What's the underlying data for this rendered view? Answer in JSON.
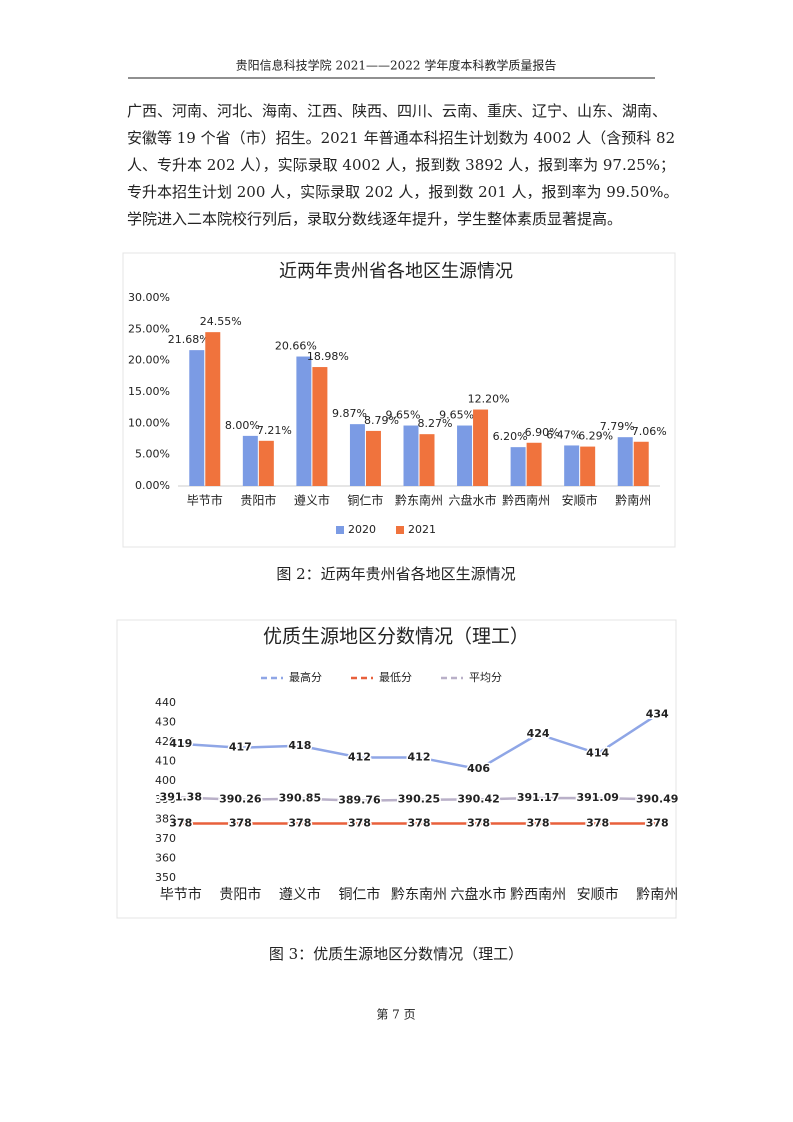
{
  "header": {
    "title": "贵阳信息科技学院 2021——2022 学年度本科教学质量报告"
  },
  "body": {
    "lines": [
      "广西、河南、河北、海南、江西、陕西、四川、云南、重庆、辽宁、山东、湖南、",
      "安徽等 19 个省（市）招生。2021 年普通本科招生计划数为 4002 人（含预科 82",
      "人、专升本 202 人），实际录取 4002 人，报到数 3892 人，报到率为 97.25%；",
      "专升本招生计划 200 人，实际录取 202 人，报到数 201 人，报到率为 99.50%。",
      "学院进入二本院校行列后，录取分数线逐年提升，学生整体素质显著提高。"
    ]
  },
  "chart_data": [
    {
      "type": "bar",
      "title": "近两年贵州省各地区生源情况",
      "categories": [
        "毕节市",
        "贵阳市",
        "遵义市",
        "铜仁市",
        "黔东南州",
        "六盘水市",
        "黔西南州",
        "安顺市",
        "黔南州"
      ],
      "series": [
        {
          "name": "2020",
          "color": "#7b9be4",
          "values": [
            21.68,
            8.0,
            20.66,
            9.87,
            9.65,
            9.65,
            6.2,
            6.47,
            7.79
          ],
          "value_labels": [
            "21.68%",
            "8.00%",
            "20.66%",
            "9.87%",
            "9.65%",
            "9.65%",
            "6.20%",
            "6.47%",
            "7.79%"
          ]
        },
        {
          "name": "2021",
          "color": "#f0733d",
          "values": [
            24.55,
            7.21,
            18.98,
            8.79,
            8.27,
            12.2,
            6.9,
            6.29,
            7.06
          ],
          "value_labels": [
            "24.55%",
            "7.21%",
            "18.98%",
            "8.79%",
            "8.27%",
            "12.20%",
            "6.90%",
            "6.29%",
            "7.06%"
          ]
        }
      ],
      "ylim": [
        0,
        30
      ],
      "yticks": [
        {
          "value": 0,
          "label": "0.00%"
        },
        {
          "value": 5,
          "label": "5.00%"
        },
        {
          "value": 10,
          "label": "10.00%"
        },
        {
          "value": 15,
          "label": "15.00%"
        },
        {
          "value": 20,
          "label": "20.00%"
        },
        {
          "value": 25,
          "label": "25.00%"
        },
        {
          "value": 30,
          "label": "30.00%"
        }
      ],
      "grid": false,
      "legend": "bottom"
    },
    {
      "type": "line",
      "title": "优质生源地区分数情况（理工）",
      "categories": [
        "毕节市",
        "贵阳市",
        "遵义市",
        "铜仁市",
        "黔东南州",
        "六盘水市",
        "黔西南州",
        "安顺市",
        "黔南州"
      ],
      "series": [
        {
          "name": "最高分",
          "color": "#8fa6e6",
          "values": [
            419,
            417,
            418,
            412,
            412,
            406,
            424,
            414,
            434
          ]
        },
        {
          "name": "最低分",
          "color": "#e8603c",
          "values": [
            378,
            378,
            378,
            378,
            378,
            378,
            378,
            378,
            378
          ]
        },
        {
          "name": "平均分",
          "color": "#b9b0c8",
          "values": [
            391.38,
            390.26,
            390.85,
            389.76,
            390.25,
            390.42,
            391.17,
            391.09,
            390.49
          ]
        }
      ],
      "ylim": [
        350,
        440
      ],
      "yticks": [
        350,
        360,
        370,
        380,
        390,
        400,
        410,
        420,
        430,
        440
      ],
      "grid": false,
      "legend": "top"
    }
  ],
  "captions": [
    "图 2：近两年贵州省各地区生源情况",
    "图 3：优质生源地区分数情况（理工）"
  ],
  "footer": {
    "page": "第 7 页"
  }
}
